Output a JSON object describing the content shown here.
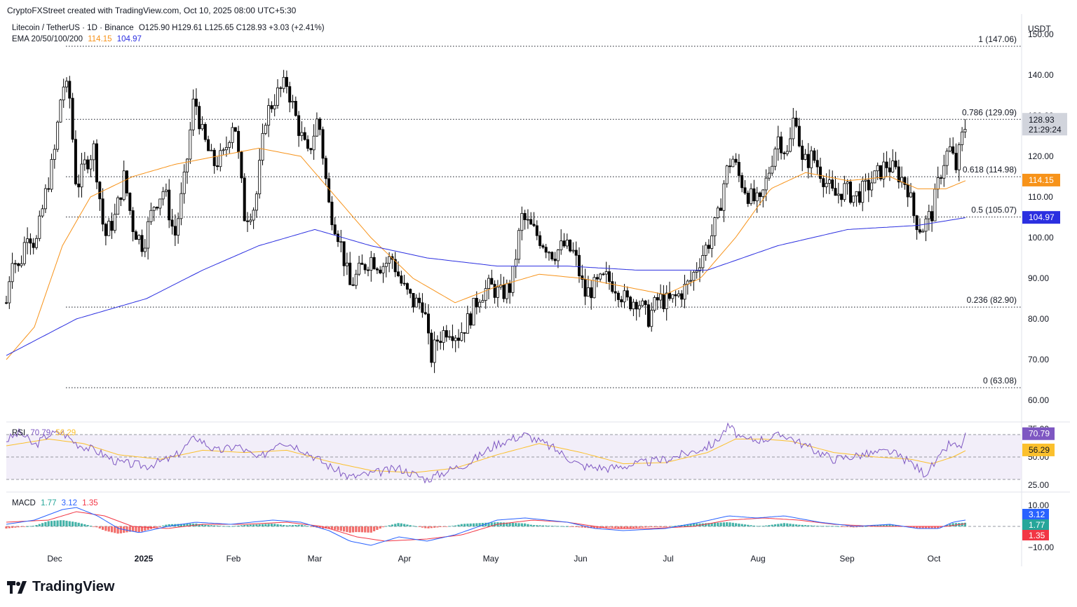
{
  "header": {
    "attribution": "CryptoFXStreet created with TradingView.com, Oct 10, 2025 08:00 UTC+5:30",
    "symbol": "Litecoin / TetherUS · 1D · Binance",
    "ohlc": "O125.90 H129.61 L125.65 C128.93 +3.03 (+2.41%)",
    "ema_label": "EMA 20/50/100/200",
    "ema_values": [
      "114.15",
      "104.97"
    ],
    "currency": "USDT"
  },
  "colors": {
    "candle": "#000000",
    "ema_orange": "#f7931a",
    "ema_blue": "#2b2fe0",
    "rsi_line": "#7e57c2",
    "rsi_ma": "#fbc02d",
    "macd_line": "#2962ff",
    "signal_line": "#f23645",
    "hist_up": "#26a69a",
    "hist_down": "#ef5350"
  },
  "chart_data": [
    {
      "type": "candlestick",
      "yaxis_ticks": [
        "150.00",
        "140.00",
        "130.00",
        "120.00",
        "110.00",
        "100.00",
        "90.00",
        "80.00",
        "70.00",
        "60.00"
      ],
      "ylim": [
        55,
        155
      ],
      "xaxis_labels": [
        "Dec",
        "2025",
        "Feb",
        "Mar",
        "Apr",
        "May",
        "Jun",
        "Jul",
        "Aug",
        "Sep",
        "Oct"
      ],
      "fib_levels": [
        {
          "label": "1 (147.06)",
          "value": 147.06
        },
        {
          "label": "0.786 (129.09)",
          "value": 129.09
        },
        {
          "label": "0.618 (114.98)",
          "value": 114.98
        },
        {
          "label": "0.5 (105.07)",
          "value": 105.07
        },
        {
          "label": "0.236 (82.90)",
          "value": 82.9
        },
        {
          "label": "0 (63.08)",
          "value": 63.08
        }
      ],
      "last_price": {
        "value": 128.93,
        "label": "128.93",
        "countdown": "21:29:24"
      },
      "ema_tags": [
        {
          "label": "114.15",
          "value": 114.15
        },
        {
          "label": "104.97",
          "value": 104.97
        }
      ],
      "close_series_key": [
        [
          0,
          84
        ],
        [
          8,
          96
        ],
        [
          18,
          92
        ],
        [
          30,
          102
        ],
        [
          42,
          98
        ],
        [
          55,
          110
        ],
        [
          68,
          120
        ],
        [
          80,
          138
        ],
        [
          90,
          135
        ],
        [
          100,
          112
        ],
        [
          112,
          118
        ],
        [
          125,
          122
        ],
        [
          140,
          100
        ],
        [
          155,
          105
        ],
        [
          168,
          115
        ],
        [
          180,
          103
        ],
        [
          195,
          98
        ],
        [
          210,
          108
        ],
        [
          225,
          112
        ],
        [
          240,
          100
        ],
        [
          255,
          115
        ],
        [
          268,
          135
        ],
        [
          280,
          125
        ],
        [
          295,
          118
        ],
        [
          310,
          120
        ],
        [
          325,
          130
        ],
        [
          340,
          105
        ],
        [
          355,
          108
        ],
        [
          370,
          130
        ],
        [
          385,
          135
        ],
        [
          400,
          138
        ],
        [
          415,
          128
        ],
        [
          430,
          120
        ],
        [
          445,
          130
        ],
        [
          460,
          108
        ],
        [
          475,
          100
        ],
        [
          490,
          88
        ],
        [
          505,
          92
        ],
        [
          520,
          95
        ],
        [
          535,
          93
        ],
        [
          550,
          95
        ],
        [
          565,
          88
        ],
        [
          580,
          84
        ],
        [
          595,
          84
        ],
        [
          605,
          70
        ],
        [
          615,
          75
        ],
        [
          630,
          78
        ],
        [
          645,
          76
        ],
        [
          660,
          80
        ],
        [
          675,
          86
        ],
        [
          690,
          88
        ],
        [
          705,
          86
        ],
        [
          720,
          88
        ],
        [
          735,
          105
        ],
        [
          750,
          102
        ],
        [
          765,
          99
        ],
        [
          780,
          96
        ],
        [
          795,
          98
        ],
        [
          810,
          96
        ],
        [
          825,
          86
        ],
        [
          840,
          88
        ],
        [
          855,
          90
        ],
        [
          870,
          88
        ],
        [
          885,
          84
        ],
        [
          900,
          85
        ],
        [
          915,
          80
        ],
        [
          930,
          85
        ],
        [
          945,
          84
        ],
        [
          960,
          86
        ],
        [
          975,
          89
        ],
        [
          990,
          95
        ],
        [
          1005,
          100
        ],
        [
          1015,
          105
        ],
        [
          1025,
          115
        ],
        [
          1035,
          120
        ],
        [
          1045,
          115
        ],
        [
          1060,
          110
        ],
        [
          1075,
          108
        ],
        [
          1090,
          118
        ],
        [
          1100,
          125
        ],
        [
          1115,
          120
        ],
        [
          1125,
          132
        ],
        [
          1135,
          118
        ],
        [
          1150,
          120
        ],
        [
          1165,
          115
        ],
        [
          1180,
          110
        ],
        [
          1195,
          112
        ],
        [
          1210,
          110
        ],
        [
          1225,
          112
        ],
        [
          1240,
          115
        ],
        [
          1255,
          118
        ],
        [
          1270,
          116
        ],
        [
          1285,
          113
        ],
        [
          1295,
          105
        ],
        [
          1305,
          102
        ],
        [
          1320,
          106
        ],
        [
          1335,
          118
        ],
        [
          1345,
          122
        ],
        [
          1355,
          117
        ],
        [
          1362,
          124
        ],
        [
          1370,
          128.93
        ]
      ],
      "ema_50_key": [
        [
          0,
          70
        ],
        [
          40,
          78
        ],
        [
          80,
          98
        ],
        [
          120,
          110
        ],
        [
          180,
          115
        ],
        [
          240,
          118
        ],
        [
          300,
          120
        ],
        [
          360,
          122
        ],
        [
          420,
          120
        ],
        [
          460,
          112
        ],
        [
          520,
          100
        ],
        [
          580,
          90
        ],
        [
          640,
          84
        ],
        [
          700,
          88
        ],
        [
          760,
          91
        ],
        [
          820,
          90
        ],
        [
          880,
          88
        ],
        [
          940,
          86
        ],
        [
          990,
          90
        ],
        [
          1040,
          100
        ],
        [
          1090,
          112
        ],
        [
          1140,
          116
        ],
        [
          1200,
          114
        ],
        [
          1260,
          115
        ],
        [
          1300,
          112
        ],
        [
          1340,
          112
        ],
        [
          1370,
          114.15
        ]
      ],
      "ema_200_key": [
        [
          0,
          71
        ],
        [
          100,
          80
        ],
        [
          200,
          85
        ],
        [
          280,
          92
        ],
        [
          360,
          98
        ],
        [
          440,
          102
        ],
        [
          520,
          98
        ],
        [
          600,
          95
        ],
        [
          700,
          93
        ],
        [
          800,
          93
        ],
        [
          900,
          92
        ],
        [
          1000,
          92
        ],
        [
          1100,
          98
        ],
        [
          1200,
          102
        ],
        [
          1300,
          103
        ],
        [
          1370,
          104.97
        ]
      ]
    },
    {
      "type": "line",
      "name": "RSI",
      "values_label": [
        "70.79",
        "56.29"
      ],
      "yaxis_ticks": [
        "75.00",
        "50.00",
        "25.00"
      ],
      "ylim": [
        20,
        80
      ],
      "rsi_key": [
        [
          0,
          65
        ],
        [
          20,
          72
        ],
        [
          40,
          60
        ],
        [
          60,
          70
        ],
        [
          80,
          72
        ],
        [
          100,
          62
        ],
        [
          130,
          55
        ],
        [
          160,
          45
        ],
        [
          200,
          42
        ],
        [
          240,
          50
        ],
        [
          270,
          68
        ],
        [
          300,
          55
        ],
        [
          330,
          60
        ],
        [
          360,
          48
        ],
        [
          390,
          65
        ],
        [
          420,
          58
        ],
        [
          460,
          42
        ],
        [
          490,
          32
        ],
        [
          520,
          35
        ],
        [
          560,
          40
        ],
        [
          600,
          30
        ],
        [
          630,
          38
        ],
        [
          660,
          45
        ],
        [
          700,
          62
        ],
        [
          740,
          70
        ],
        [
          780,
          58
        ],
        [
          820,
          42
        ],
        [
          860,
          40
        ],
        [
          900,
          44
        ],
        [
          940,
          48
        ],
        [
          980,
          55
        ],
        [
          1010,
          62
        ],
        [
          1030,
          78
        ],
        [
          1050,
          65
        ],
        [
          1080,
          66
        ],
        [
          1110,
          70
        ],
        [
          1140,
          60
        ],
        [
          1180,
          48
        ],
        [
          1220,
          52
        ],
        [
          1260,
          55
        ],
        [
          1290,
          45
        ],
        [
          1310,
          35
        ],
        [
          1330,
          48
        ],
        [
          1345,
          62
        ],
        [
          1360,
          58
        ],
        [
          1370,
          70.79
        ]
      ],
      "rsi_ma_key": [
        [
          0,
          60
        ],
        [
          60,
          66
        ],
        [
          110,
          62
        ],
        [
          160,
          52
        ],
        [
          220,
          48
        ],
        [
          280,
          56
        ],
        [
          340,
          54
        ],
        [
          400,
          56
        ],
        [
          460,
          46
        ],
        [
          520,
          38
        ],
        [
          580,
          36
        ],
        [
          640,
          40
        ],
        [
          700,
          52
        ],
        [
          760,
          62
        ],
        [
          820,
          54
        ],
        [
          880,
          44
        ],
        [
          940,
          45
        ],
        [
          1000,
          54
        ],
        [
          1040,
          66
        ],
        [
          1080,
          66
        ],
        [
          1120,
          64
        ],
        [
          1180,
          54
        ],
        [
          1240,
          50
        ],
        [
          1290,
          48
        ],
        [
          1320,
          44
        ],
        [
          1350,
          50
        ],
        [
          1370,
          56.29
        ]
      ]
    },
    {
      "type": "bar",
      "name": "MACD",
      "values_label": [
        "1.77",
        "3.12",
        "1.35"
      ],
      "yaxis_ticks": [
        "10.00",
        "−10.00"
      ],
      "ylim": [
        -10,
        10
      ],
      "macd_key": [
        [
          0,
          1
        ],
        [
          40,
          3
        ],
        [
          80,
          8
        ],
        [
          100,
          9
        ],
        [
          130,
          5
        ],
        [
          160,
          -1
        ],
        [
          190,
          -3
        ],
        [
          230,
          0
        ],
        [
          270,
          2
        ],
        [
          320,
          1
        ],
        [
          380,
          3
        ],
        [
          420,
          2
        ],
        [
          460,
          -2
        ],
        [
          490,
          -7
        ],
        [
          520,
          -9
        ],
        [
          560,
          -5
        ],
        [
          600,
          -7
        ],
        [
          640,
          -4
        ],
        [
          700,
          3
        ],
        [
          740,
          4
        ],
        [
          800,
          2
        ],
        [
          840,
          -1
        ],
        [
          880,
          -2
        ],
        [
          940,
          -1
        ],
        [
          990,
          2
        ],
        [
          1030,
          5
        ],
        [
          1070,
          4
        ],
        [
          1110,
          5
        ],
        [
          1160,
          2
        ],
        [
          1210,
          0
        ],
        [
          1260,
          1
        ],
        [
          1300,
          -1
        ],
        [
          1330,
          -1
        ],
        [
          1350,
          2
        ],
        [
          1370,
          3.12
        ]
      ],
      "signal_key": [
        [
          0,
          2
        ],
        [
          60,
          3
        ],
        [
          100,
          7
        ],
        [
          140,
          5
        ],
        [
          180,
          0
        ],
        [
          230,
          -1
        ],
        [
          280,
          1
        ],
        [
          340,
          1
        ],
        [
          400,
          2
        ],
        [
          450,
          0
        ],
        [
          500,
          -5
        ],
        [
          540,
          -7
        ],
        [
          600,
          -6
        ],
        [
          650,
          -4
        ],
        [
          700,
          1
        ],
        [
          750,
          3
        ],
        [
          800,
          2
        ],
        [
          860,
          -1
        ],
        [
          920,
          -1
        ],
        [
          980,
          0
        ],
        [
          1030,
          3
        ],
        [
          1080,
          4
        ],
        [
          1130,
          3
        ],
        [
          1180,
          1
        ],
        [
          1240,
          0
        ],
        [
          1300,
          0
        ],
        [
          1340,
          0
        ],
        [
          1370,
          1.35
        ]
      ]
    }
  ]
}
